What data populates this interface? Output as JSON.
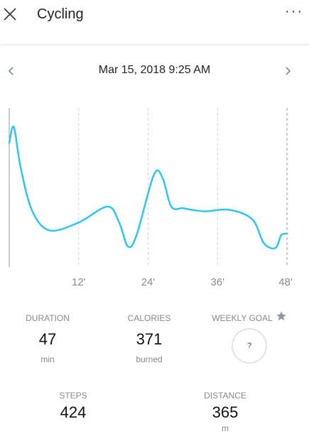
{
  "header": {
    "title": "Cycling",
    "close_icon": "close-icon",
    "more_icon": "more-horizontal-icon",
    "more_label": "···"
  },
  "date_nav": {
    "label": "Mar 15, 2018 9:25 AM",
    "prev_icon": "chevron-left-icon",
    "next_icon": "chevron-right-icon"
  },
  "chart_data": {
    "type": "line",
    "x_ticks": [
      "12'",
      "24'",
      "36'",
      "48'"
    ],
    "x_tick_values": [
      12,
      24,
      36,
      48
    ],
    "xlim": [
      0,
      48
    ],
    "ylim": [
      0,
      100
    ],
    "line_color": "#2ec5ef",
    "grid": "dashed vertical",
    "x": [
      0,
      0.8,
      2,
      4,
      7,
      12,
      17,
      19,
      20.5,
      22,
      25,
      26.5,
      28,
      30,
      31.5,
      34,
      38,
      42,
      44,
      46,
      47,
      48
    ],
    "y": [
      78,
      88,
      62,
      35,
      23,
      28,
      38,
      28,
      13,
      20,
      58,
      56,
      38,
      37,
      36,
      35,
      36,
      30,
      15,
      12,
      20,
      21
    ]
  },
  "stats": {
    "duration": {
      "label": "DURATION",
      "value": "47",
      "unit": "min"
    },
    "calories": {
      "label": "CALORIES",
      "value": "371",
      "unit": "burned"
    },
    "weekly_goal": {
      "label": "WEEKLY GOAL",
      "value": "?",
      "icon": "star-icon"
    },
    "steps": {
      "label": "STEPS",
      "value": "424"
    },
    "distance": {
      "label": "DISTANCE",
      "value": "365",
      "unit": "m"
    }
  }
}
